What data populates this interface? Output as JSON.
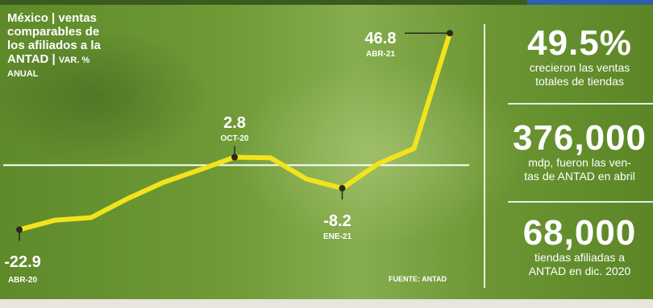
{
  "title": {
    "line1": "México | ventas",
    "line2": "comparables de",
    "line3": "los afiliados a la",
    "line4_main": "ANTAD | ",
    "line4_unit": "VAR. %",
    "line5": "ANUAL"
  },
  "source": "FUENTE: ANTAD",
  "chart_data": {
    "type": "line",
    "series": [
      {
        "color": "#f3e31c",
        "points": [
          {
            "x": "2020-04",
            "y": -22.9
          },
          {
            "x": "2020-05",
            "y": -19.5
          },
          {
            "x": "2020-06",
            "y": -18.6
          },
          {
            "x": "2020-07",
            "y": -12.0
          },
          {
            "x": "2020-08",
            "y": -6.2
          },
          {
            "x": "2020-09",
            "y": -1.8
          },
          {
            "x": "2020-10",
            "y": 2.8
          },
          {
            "x": "2020-11",
            "y": 2.6
          },
          {
            "x": "2020-12",
            "y": -4.9
          },
          {
            "x": "2021-01",
            "y": -8.2
          },
          {
            "x": "2021-02",
            "y": 0.5
          },
          {
            "x": "2021-03",
            "y": 5.9
          },
          {
            "x": "2021-04",
            "y": 46.8
          }
        ]
      }
    ],
    "annotations": [
      {
        "x": "2020-04",
        "value": "-22.9",
        "date": "ABR-20"
      },
      {
        "x": "2020-10",
        "value": "2.8",
        "date": "OCT-20"
      },
      {
        "x": "2021-01",
        "value": "-8.2",
        "date": "ENE-21"
      },
      {
        "x": "2021-04",
        "value": "46.8",
        "date": "ABR-21"
      }
    ],
    "zero_line": true,
    "grid": false,
    "ylim": [
      -25,
      48
    ]
  },
  "stats": [
    {
      "big": "49.5%",
      "desc1": "crecieron las ventas",
      "desc2": "totales de tiendas"
    },
    {
      "big": "376,000",
      "desc1": "mdp, fueron las ven-",
      "desc2": "tas de ANTAD en abril"
    },
    {
      "big": "68,000",
      "desc1": "tiendas afiliadas a",
      "desc2": "ANTAD en dic. 2020"
    }
  ]
}
